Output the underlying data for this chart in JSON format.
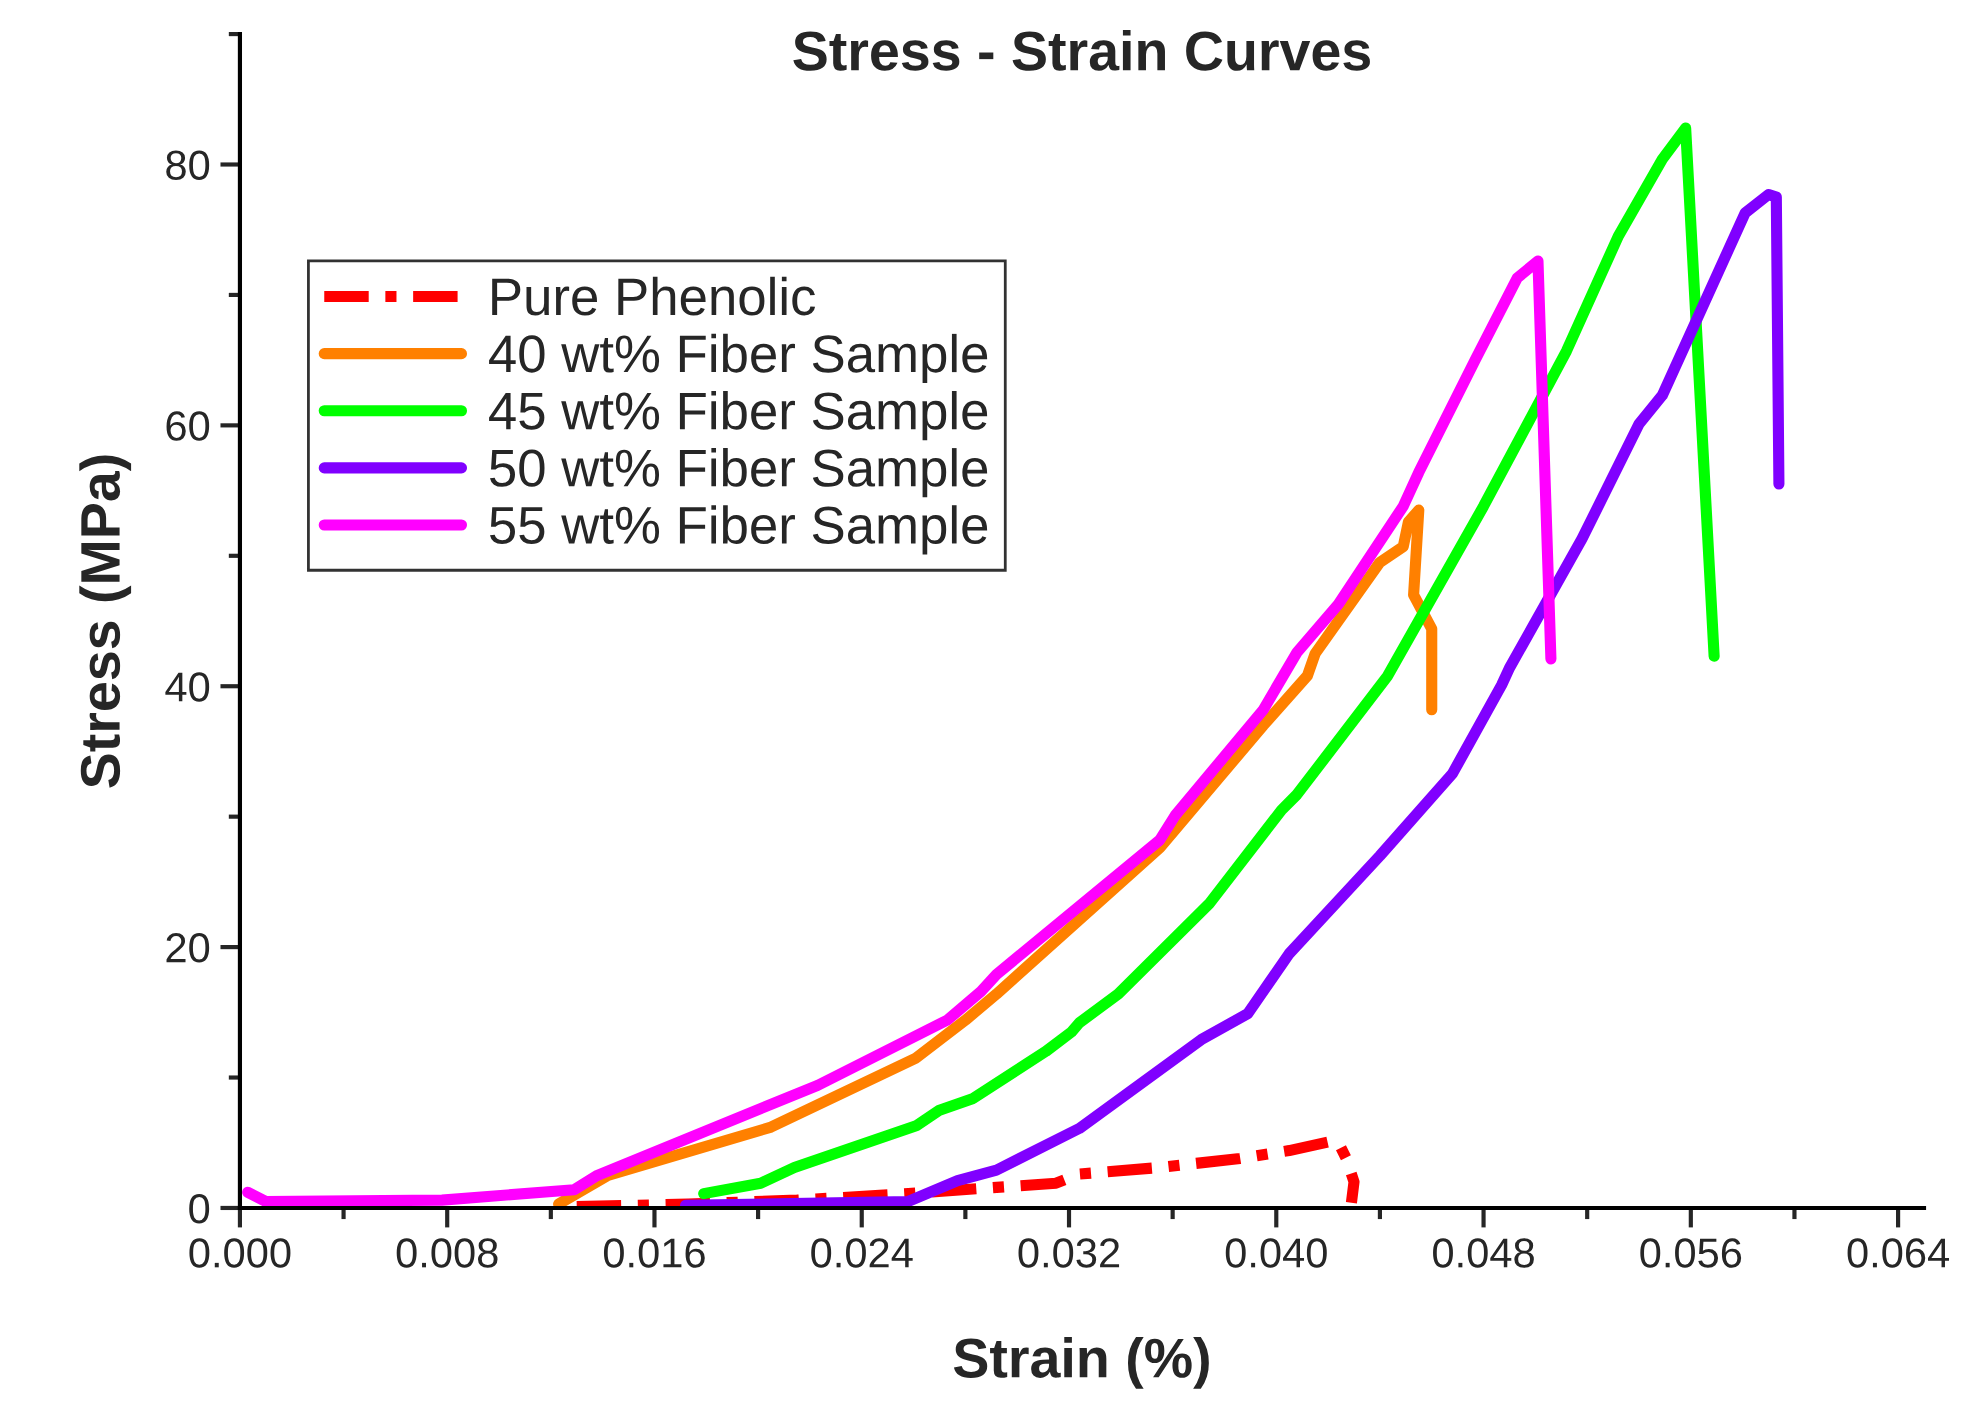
{
  "chart_data": {
    "type": "line",
    "title": "Stress - Strain Curves",
    "xlabel": "Strain (%)",
    "ylabel": "Stress (MPa)",
    "xlim": [
      0,
      0.065
    ],
    "ylim": [
      0,
      90
    ],
    "xticks": [
      {
        "value": 0,
        "label": "0.000"
      },
      {
        "value": 0.008,
        "label": "0.008"
      },
      {
        "value": 0.016,
        "label": "0.016"
      },
      {
        "value": 0.024,
        "label": "0.024"
      },
      {
        "value": 0.032,
        "label": "0.032"
      },
      {
        "value": 0.04,
        "label": "0.040"
      },
      {
        "value": 0.048,
        "label": "0.048"
      },
      {
        "value": 0.056,
        "label": "0.056"
      },
      {
        "value": 0.064,
        "label": "0.064"
      }
    ],
    "yticks": [
      0,
      20,
      40,
      60,
      80
    ],
    "legend": "left",
    "grid": false,
    "series": [
      {
        "name": "Pure Phenolic",
        "color": "#ff0000",
        "line_style": "dashdot",
        "x": [
          0.013,
          0.0173,
          0.0215,
          0.0258,
          0.0315,
          0.0324,
          0.0355,
          0.0386,
          0.0405,
          0.0421,
          0.0424,
          0.0427,
          0.043,
          0.0429
        ],
        "values": [
          0.1,
          0.3,
          0.6,
          1.1,
          1.9,
          2.6,
          3.1,
          3.8,
          4.4,
          5.1,
          5.0,
          3.8,
          2.0,
          0.4
        ]
      },
      {
        "name": "40 wt% Fiber Sample",
        "color": "#ff8000",
        "x": [
          0.0123,
          0.0142,
          0.0205,
          0.0261,
          0.028,
          0.0292,
          0.0355,
          0.0395,
          0.0412,
          0.0415,
          0.044,
          0.0449,
          0.0451,
          0.0455,
          0.0453,
          0.046,
          0.046
        ],
        "values": [
          0.3,
          2.5,
          6.2,
          11.5,
          14.4,
          16.4,
          27.6,
          37,
          40.8,
          42.5,
          49.5,
          50.7,
          52.6,
          53.5,
          47,
          44.4,
          38.2
        ]
      },
      {
        "name": "45 wt% Fiber Sample",
        "color": "#00ff00",
        "x": [
          0.0179,
          0.0201,
          0.0214,
          0.0261,
          0.027,
          0.0283,
          0.0311,
          0.0321,
          0.0324,
          0.0339,
          0.0374,
          0.0402,
          0.0408,
          0.0443,
          0.048,
          0.0512,
          0.0532,
          0.0549,
          0.0558,
          0.0569
        ],
        "values": [
          1.1,
          1.9,
          3.1,
          6.3,
          7.5,
          8.4,
          12.0,
          13.5,
          14.2,
          16.4,
          23.3,
          30.5,
          31.7,
          40.8,
          53.8,
          65.7,
          74.5,
          80.4,
          82.8,
          42.3
        ]
      },
      {
        "name": "50 wt% Fiber Sample",
        "color": "#8000ff",
        "x": [
          0.0172,
          0.0258,
          0.0277,
          0.0292,
          0.0324,
          0.0371,
          0.0389,
          0.0405,
          0.044,
          0.0468,
          0.0487,
          0.049,
          0.0518,
          0.054,
          0.0549,
          0.0581,
          0.059,
          0.0593,
          0.0594
        ],
        "values": [
          0.2,
          0.5,
          2.1,
          2.9,
          6.1,
          12.9,
          14.9,
          19.5,
          27,
          33.3,
          40.1,
          41.4,
          51.3,
          60.1,
          62.3,
          76.3,
          77.7,
          77.5,
          55.5
        ]
      },
      {
        "name": "55 wt% Fiber Sample",
        "color": "#ff00ff",
        "x": [
          0.0003,
          0.001,
          0.0078,
          0.0129,
          0.0138,
          0.0223,
          0.0273,
          0.0286,
          0.0292,
          0.0355,
          0.0361,
          0.0395,
          0.0408,
          0.0424,
          0.0449,
          0.0455,
          0.0477,
          0.0493,
          0.0501,
          0.0506
        ],
        "values": [
          1.2,
          0.5,
          0.6,
          1.4,
          2.5,
          9.4,
          14.4,
          16.6,
          17.9,
          28.2,
          30.1,
          38.2,
          42.6,
          46.3,
          53.8,
          56.4,
          65.1,
          71.3,
          72.6,
          42.1
        ]
      }
    ]
  }
}
